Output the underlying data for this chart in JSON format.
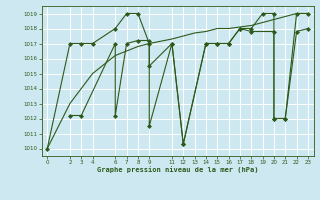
{
  "background_color": "#cde8f0",
  "grid_color": "#ffffff",
  "line_color": "#2d5a1b",
  "title": "Graphe pression niveau de la mer (hPa)",
  "ylim": [
    1009.5,
    1019.5
  ],
  "xlim": [
    -0.5,
    23.5
  ],
  "yticks": [
    1010,
    1011,
    1012,
    1013,
    1014,
    1015,
    1016,
    1017,
    1018,
    1019
  ],
  "xticks": [
    0,
    2,
    3,
    4,
    6,
    7,
    8,
    9,
    11,
    12,
    13,
    14,
    15,
    16,
    17,
    18,
    19,
    20,
    21,
    22,
    23
  ],
  "series": [
    {
      "x": [
        0,
        2,
        3,
        4,
        6,
        7,
        8,
        9,
        9,
        11,
        12,
        14,
        15,
        16,
        17,
        18,
        19,
        20,
        20,
        21,
        22,
        23
      ],
      "y": [
        1010,
        1017,
        1017,
        1017,
        1018,
        1019,
        1019,
        1017,
        1011.5,
        1017,
        1010.3,
        1017,
        1017,
        1017,
        1018,
        1018,
        1019,
        1019,
        1012,
        1012,
        1019,
        1019
      ],
      "marker": "D",
      "markersize": 2.0,
      "linewidth": 0.8
    },
    {
      "x": [
        2,
        3,
        6,
        6,
        7,
        8,
        9,
        9,
        11,
        12,
        14,
        15,
        16,
        17,
        18,
        20,
        20,
        21,
        22,
        23
      ],
      "y": [
        1012.2,
        1012.2,
        1017,
        1012.2,
        1017,
        1017.2,
        1017.2,
        1015.5,
        1017,
        1010.3,
        1017,
        1017,
        1017,
        1018,
        1017.8,
        1017.8,
        1012,
        1012,
        1017.8,
        1018
      ],
      "marker": "D",
      "markersize": 2.0,
      "linewidth": 0.8
    },
    {
      "x": [
        0,
        2,
        3,
        4,
        6,
        7,
        8,
        9,
        11,
        12,
        13,
        14,
        15,
        16,
        17,
        18,
        19,
        20,
        21,
        22,
        23
      ],
      "y": [
        1010.0,
        1013.0,
        1014.0,
        1015.0,
        1016.2,
        1016.5,
        1016.8,
        1017.0,
        1017.3,
        1017.5,
        1017.7,
        1017.8,
        1018.0,
        1018.0,
        1018.1,
        1018.2,
        1018.4,
        1018.6,
        1018.8,
        1019.0,
        1019.0
      ],
      "marker": null,
      "markersize": 0,
      "linewidth": 0.8
    }
  ],
  "figsize": [
    3.2,
    2.0
  ],
  "dpi": 100
}
